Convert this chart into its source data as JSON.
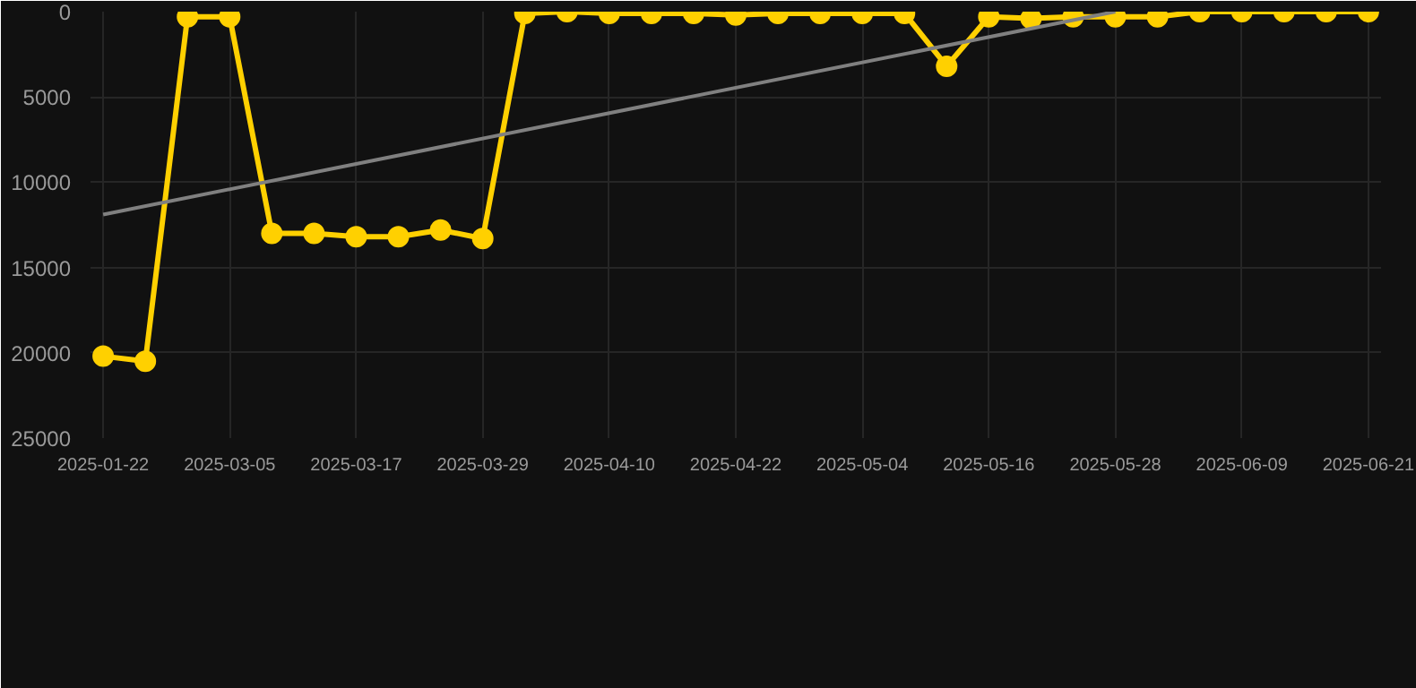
{
  "chart_data": {
    "type": "line",
    "categories": [
      "2025-01-22",
      null,
      null,
      "2025-03-05",
      null,
      null,
      "2025-03-17",
      null,
      null,
      "2025-03-29",
      null,
      null,
      "2025-04-10",
      null,
      null,
      "2025-04-22",
      null,
      null,
      "2025-05-04",
      null,
      null,
      "2025-05-16",
      null,
      null,
      "2025-05-28",
      null,
      null,
      "2025-06-09",
      null,
      null,
      "2025-06-21"
    ],
    "series": [
      {
        "color": "#ffd000",
        "marker": "circle",
        "values": [
          20200,
          20500,
          300,
          300,
          13000,
          13000,
          13200,
          13200,
          12800,
          13300,
          100,
          0,
          100,
          100,
          100,
          200,
          100,
          100,
          100,
          100,
          3200,
          300,
          400,
          300,
          300,
          300,
          0,
          0,
          0,
          0,
          0
        ]
      },
      {
        "type": "line",
        "color": "#808080",
        "marker": "none",
        "values": [
          11900,
          null,
          null,
          null,
          null,
          null,
          null,
          null,
          null,
          null,
          null,
          null,
          null,
          null,
          null,
          null,
          null,
          null,
          null,
          null,
          null,
          null,
          null,
          null,
          0,
          null,
          null,
          null,
          null,
          null,
          null
        ]
      }
    ],
    "ylim": [
      25000,
      0
    ],
    "yticks": [
      0,
      5000,
      10000,
      15000,
      20000,
      25000
    ],
    "grid": true
  }
}
